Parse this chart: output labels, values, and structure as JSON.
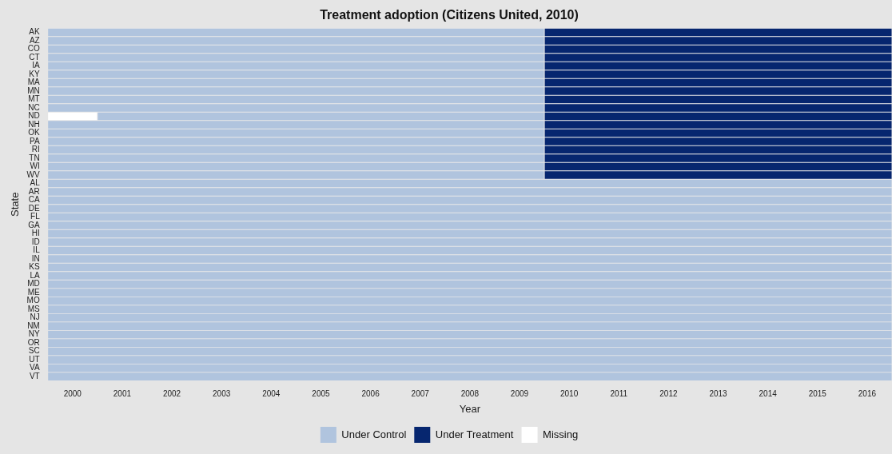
{
  "chart_data": {
    "type": "bar",
    "orientation": "horizontal",
    "title": "Treatment adoption (Citizens United, 2010)",
    "xlabel": "Year",
    "ylabel": "State",
    "categories": [
      "AK",
      "AZ",
      "CO",
      "CT",
      "IA",
      "KY",
      "MA",
      "MN",
      "MT",
      "NC",
      "ND",
      "NH",
      "OK",
      "PA",
      "RI",
      "TN",
      "WI",
      "WV",
      "AL",
      "AR",
      "CA",
      "DE",
      "FL",
      "GA",
      "HI",
      "ID",
      "IL",
      "IN",
      "KS",
      "LA",
      "MD",
      "ME",
      "MO",
      "MS",
      "NJ",
      "NM",
      "NY",
      "OR",
      "SC",
      "UT",
      "VA",
      "VT"
    ],
    "xlim": [
      1999.5,
      2016.5
    ],
    "xticks": [
      2000,
      2001,
      2002,
      2003,
      2004,
      2005,
      2006,
      2007,
      2008,
      2009,
      2010,
      2011,
      2012,
      2013,
      2014,
      2015,
      2016
    ],
    "series": [
      {
        "name": "Under Control",
        "color": "#b0c4de",
        "values": [
          10,
          10,
          10,
          10,
          10,
          10,
          10,
          10,
          10,
          10,
          9,
          10,
          10,
          10,
          10,
          10,
          10,
          10,
          17,
          17,
          17,
          17,
          17,
          17,
          17,
          17,
          17,
          17,
          17,
          17,
          17,
          17,
          17,
          17,
          17,
          17,
          17,
          17,
          17,
          17,
          17,
          17
        ],
        "base": [
          1999.5,
          1999.5,
          1999.5,
          1999.5,
          1999.5,
          1999.5,
          1999.5,
          1999.5,
          1999.5,
          1999.5,
          2000.5,
          1999.5,
          1999.5,
          1999.5,
          1999.5,
          1999.5,
          1999.5,
          1999.5,
          1999.5,
          1999.5,
          1999.5,
          1999.5,
          1999.5,
          1999.5,
          1999.5,
          1999.5,
          1999.5,
          1999.5,
          1999.5,
          1999.5,
          1999.5,
          1999.5,
          1999.5,
          1999.5,
          1999.5,
          1999.5,
          1999.5,
          1999.5,
          1999.5,
          1999.5,
          1999.5,
          1999.5
        ]
      },
      {
        "name": "Under Treatment",
        "color": "#06266f",
        "values": [
          7,
          7,
          7,
          7,
          7,
          7,
          7,
          7,
          7,
          7,
          7,
          7,
          7,
          7,
          7,
          7,
          7,
          7,
          null,
          null,
          null,
          null,
          null,
          null,
          null,
          null,
          null,
          null,
          null,
          null,
          null,
          null,
          null,
          null,
          null,
          null,
          null,
          null,
          null,
          null,
          null,
          null
        ],
        "base": [
          2009.5,
          2009.5,
          2009.5,
          2009.5,
          2009.5,
          2009.5,
          2009.5,
          2009.5,
          2009.5,
          2009.5,
          2009.5,
          2009.5,
          2009.5,
          2009.5,
          2009.5,
          2009.5,
          2009.5,
          2009.5,
          null,
          null,
          null,
          null,
          null,
          null,
          null,
          null,
          null,
          null,
          null,
          null,
          null,
          null,
          null,
          null,
          null,
          null,
          null,
          null,
          null,
          null,
          null,
          null
        ]
      },
      {
        "name": "Missing",
        "color": "#ffffff",
        "values": [
          null,
          null,
          null,
          null,
          null,
          null,
          null,
          null,
          null,
          null,
          1,
          null,
          null,
          null,
          null,
          null,
          null,
          null,
          null,
          null,
          null,
          null,
          null,
          null,
          null,
          null,
          null,
          null,
          null,
          null,
          null,
          null,
          null,
          null,
          null,
          null,
          null,
          null,
          null,
          null,
          null,
          null
        ],
        "base": [
          null,
          null,
          null,
          null,
          null,
          null,
          null,
          null,
          null,
          null,
          1999.5,
          null,
          null,
          null,
          null,
          null,
          null,
          null,
          null,
          null,
          null,
          null,
          null,
          null,
          null,
          null,
          null,
          null,
          null,
          null,
          null,
          null,
          null,
          null,
          null,
          null,
          null,
          null,
          null,
          null,
          null,
          null
        ]
      }
    ],
    "legend": "bottom"
  }
}
